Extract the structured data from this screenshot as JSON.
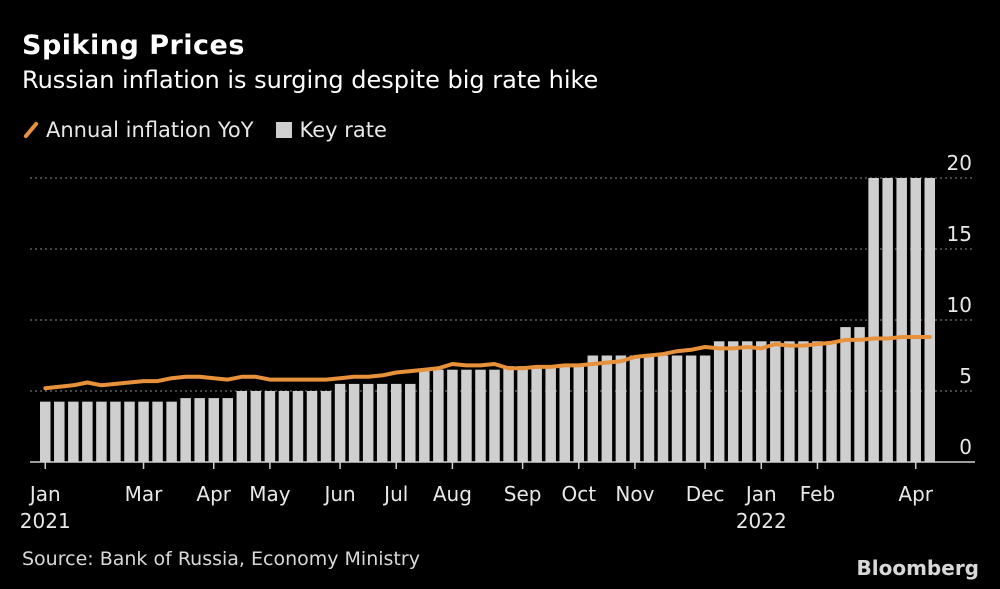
{
  "title": "Spiking Prices",
  "subtitle": "Russian inflation is surging despite big rate hike",
  "source": "Source: Bank of Russia, Economy Ministry",
  "brand": "Bloomberg",
  "colors": {
    "inflation_line": "#e8913b",
    "key_rate_bars": "#cfcfcf",
    "background": "#000000",
    "grid": "#8a8a8a"
  },
  "chart_data": {
    "type": "bar",
    "title": "Spiking Prices",
    "subtitle": "Russian inflation is surging despite big rate hike",
    "xlabel": "",
    "ylabel": "",
    "ylim": [
      0,
      20
    ],
    "yticks": [
      0,
      5,
      10,
      15,
      20
    ],
    "y_axis_position": "right",
    "grid": "horizontal dotted",
    "legend_position": "top-left",
    "x_tick_labels": [
      "Jan\n2021",
      "Mar",
      "Apr",
      "May",
      "Jun",
      "Jul",
      "Aug",
      "Sep",
      "Oct",
      "Nov",
      "Dec",
      "Jan\n2022",
      "Feb",
      "Apr"
    ],
    "series": [
      {
        "name": "Key rate",
        "kind": "bar",
        "values": [
          4.25,
          4.25,
          4.25,
          4.25,
          4.25,
          4.25,
          4.25,
          4.25,
          4.25,
          4.25,
          4.5,
          4.5,
          4.5,
          4.5,
          5,
          5,
          5,
          5,
          5,
          5,
          5,
          5.5,
          5.5,
          5.5,
          5.5,
          5.5,
          5.5,
          6.5,
          6.5,
          6.5,
          6.5,
          6.5,
          6.5,
          6.75,
          6.75,
          6.75,
          6.75,
          6.75,
          6.75,
          7.5,
          7.5,
          7.5,
          7.5,
          7.5,
          7.5,
          7.5,
          7.5,
          7.5,
          8.5,
          8.5,
          8.5,
          8.5,
          8.5,
          8.5,
          8.5,
          8.5,
          8.5,
          9.5,
          9.5,
          20,
          20,
          20,
          20,
          20
        ]
      },
      {
        "name": "Annual inflation YoY",
        "kind": "line",
        "values": [
          5.2,
          5.3,
          5.4,
          5.6,
          5.4,
          5.5,
          5.6,
          5.7,
          5.7,
          5.9,
          6.0,
          6.0,
          5.9,
          5.8,
          6.0,
          6.0,
          5.8,
          5.8,
          5.8,
          5.8,
          5.8,
          5.9,
          6.0,
          6.0,
          6.1,
          6.3,
          6.4,
          6.5,
          6.6,
          6.9,
          6.8,
          6.8,
          6.9,
          6.6,
          6.6,
          6.7,
          6.7,
          6.8,
          6.8,
          6.9,
          7.0,
          7.1,
          7.4,
          7.5,
          7.6,
          7.8,
          7.9,
          8.1,
          8.0,
          8.0,
          8.1,
          8.0,
          8.3,
          8.2,
          8.2,
          8.3,
          8.4,
          8.6,
          8.6,
          8.7,
          8.7,
          8.8,
          8.8,
          8.8
        ]
      }
    ]
  }
}
